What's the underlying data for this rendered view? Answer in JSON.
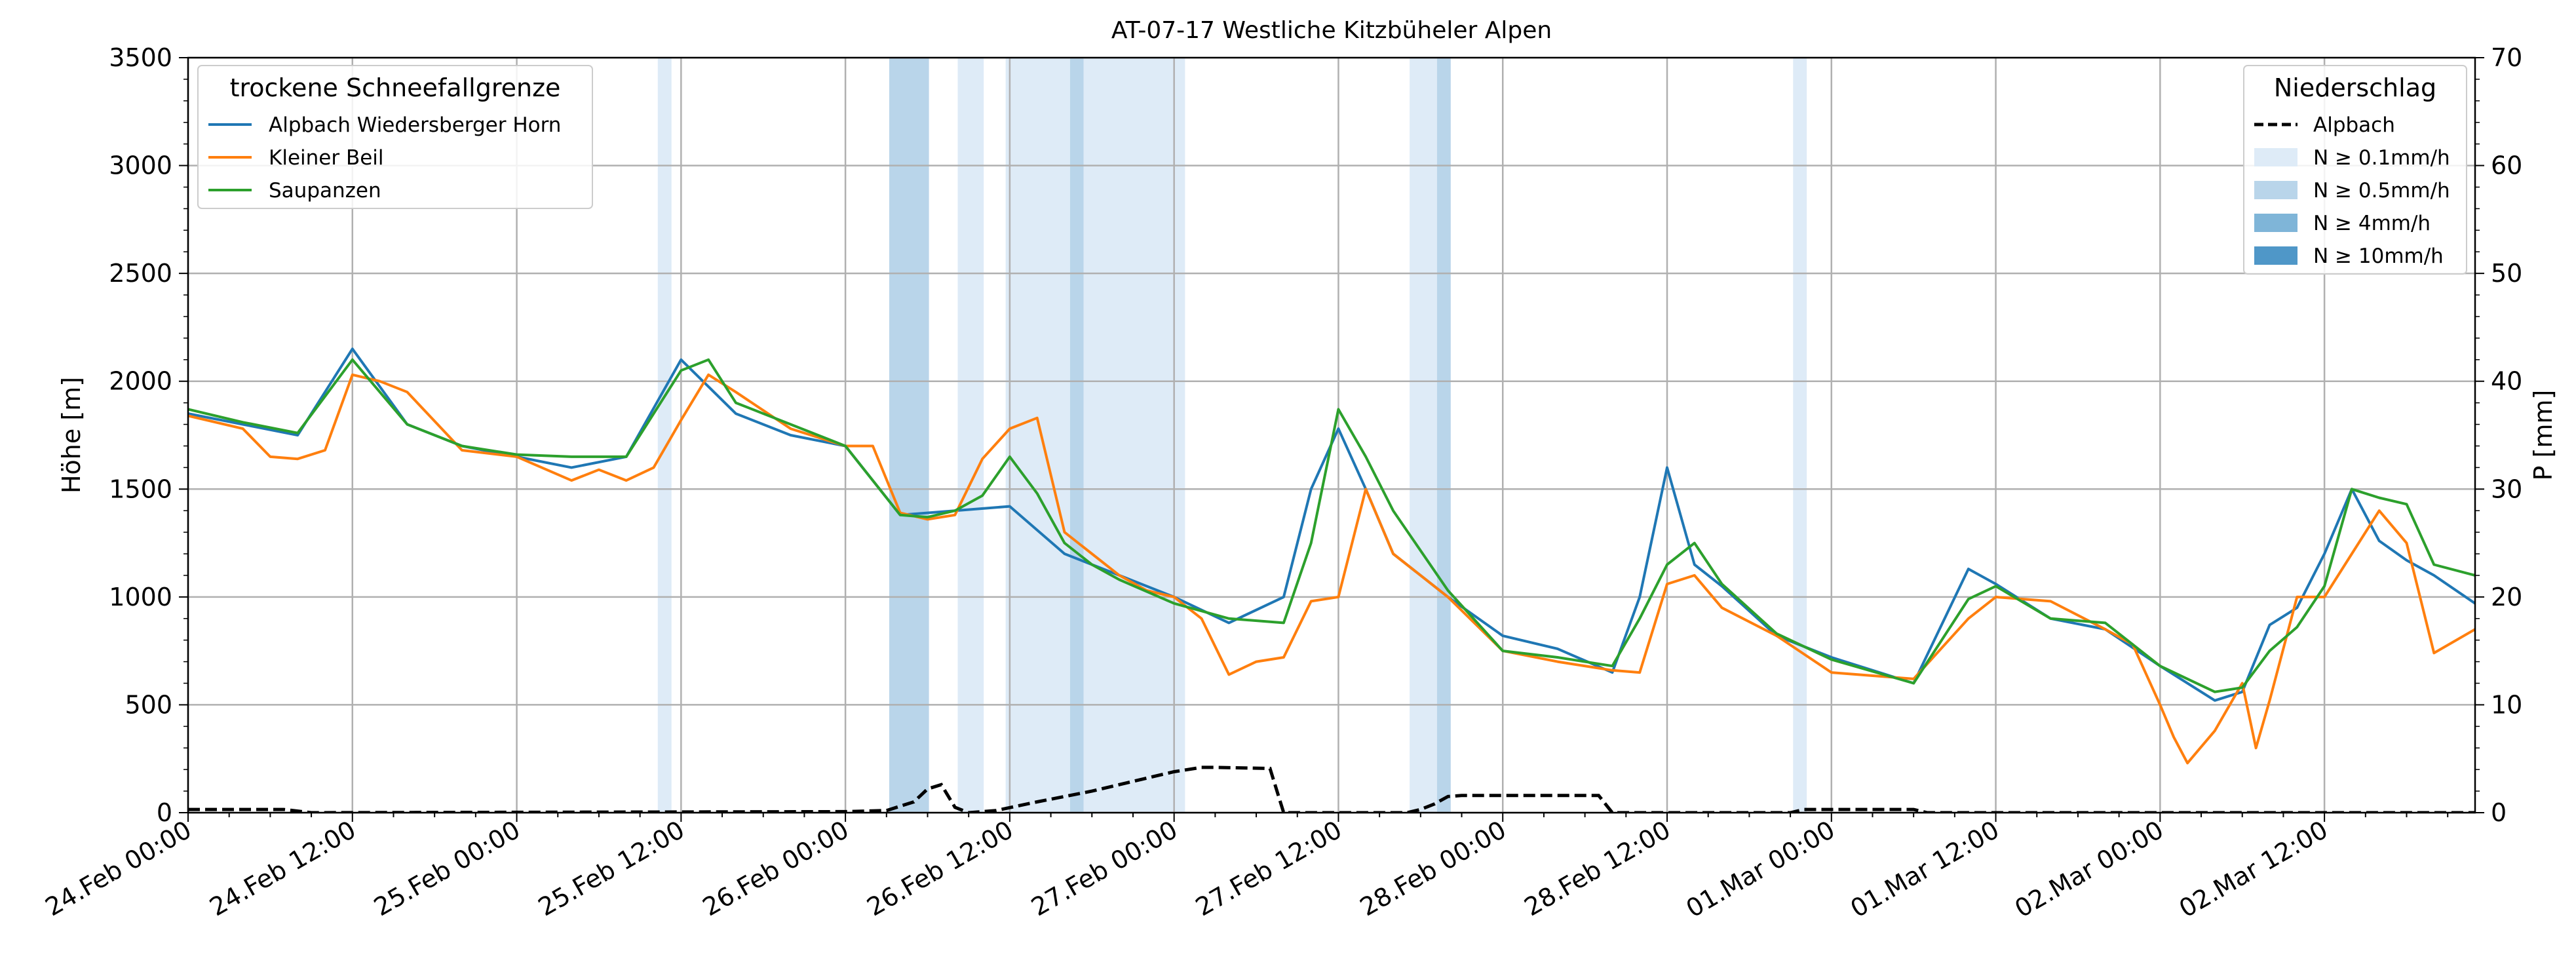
{
  "chart_data": {
    "type": "line",
    "title": "AT-07-17 Westliche Kitzbüheler Alpen",
    "ylabel": "Höhe [m]",
    "y2label": "P [mm]",
    "xlabel": "",
    "x_unit": "hours since 24.Feb 00:00",
    "xlim": [
      0,
      167
    ],
    "ylim": [
      0,
      3500
    ],
    "y2lim": [
      0,
      70
    ],
    "yticks": [
      0,
      500,
      1000,
      1500,
      2000,
      2500,
      3000,
      3500
    ],
    "y2ticks": [
      0,
      10,
      20,
      30,
      40,
      50,
      60,
      70
    ],
    "xticks": [
      {
        "t": 0,
        "label": "24.Feb 00:00"
      },
      {
        "t": 12,
        "label": "24.Feb 12:00"
      },
      {
        "t": 24,
        "label": "25.Feb 00:00"
      },
      {
        "t": 36,
        "label": "25.Feb 12:00"
      },
      {
        "t": 48,
        "label": "26.Feb 00:00"
      },
      {
        "t": 60,
        "label": "26.Feb 12:00"
      },
      {
        "t": 72,
        "label": "27.Feb 00:00"
      },
      {
        "t": 84,
        "label": "27.Feb 12:00"
      },
      {
        "t": 96,
        "label": "28.Feb 00:00"
      },
      {
        "t": 108,
        "label": "28.Feb 12:00"
      },
      {
        "t": 120,
        "label": "01.Mar 00:00"
      },
      {
        "t": 132,
        "label": "01.Mar 12:00"
      },
      {
        "t": 144,
        "label": "02.Mar 00:00"
      },
      {
        "t": 156,
        "label": "02.Mar 12:00"
      }
    ],
    "grid": true,
    "legend_left": {
      "title": "trockene Schneefallgrenze",
      "placement": "top-left"
    },
    "legend_right": {
      "title": "Niederschlag",
      "placement": "top-right",
      "entries": [
        {
          "label": "Alpbach",
          "kind": "dashed-line",
          "color": "#000000"
        },
        {
          "label": "N ≥ 0.1mm/h",
          "kind": "patch",
          "color": "#deebf7"
        },
        {
          "label": "N ≥ 0.5mm/h",
          "kind": "patch",
          "color": "#b9d5ea"
        },
        {
          "label": "N ≥ 4mm/h",
          "kind": "patch",
          "color": "#7fb5d8"
        },
        {
          "label": "N ≥ 10mm/h",
          "kind": "patch",
          "color": "#4f97c8"
        }
      ]
    },
    "precip_bands": [
      {
        "t0": 34.3,
        "t1": 35.3,
        "level": 1
      },
      {
        "t0": 51.2,
        "t1": 54.1,
        "level": 2
      },
      {
        "t0": 56.2,
        "t1": 58.1,
        "level": 1
      },
      {
        "t0": 59.7,
        "t1": 64.4,
        "level": 1
      },
      {
        "t0": 64.4,
        "t1": 65.4,
        "level": 2
      },
      {
        "t0": 65.4,
        "t1": 72.8,
        "level": 1
      },
      {
        "t0": 89.2,
        "t1": 91.2,
        "level": 1
      },
      {
        "t0": 91.2,
        "t1": 92.2,
        "level": 2
      },
      {
        "t0": 117.2,
        "t1": 118.2,
        "level": 1
      }
    ],
    "series": [
      {
        "name": "Alpbach Wiedersberger Horn",
        "color": "#1f77b4",
        "x": [
          0,
          4,
          8,
          12,
          16,
          20,
          24,
          28,
          32,
          36,
          40,
          44,
          48,
          52,
          56,
          60,
          64,
          68,
          72,
          76,
          80,
          82,
          84,
          86,
          88,
          92,
          96,
          100,
          104,
          106,
          108,
          110,
          112,
          116,
          120,
          126,
          130,
          132,
          136,
          140,
          144,
          148,
          150,
          152,
          154,
          156,
          158,
          160,
          162,
          164,
          167
        ],
        "values": [
          1850,
          1800,
          1750,
          2150,
          1800,
          1700,
          1650,
          1600,
          1650,
          2100,
          1850,
          1750,
          1700,
          1380,
          1400,
          1420,
          1200,
          1100,
          1000,
          880,
          1000,
          1500,
          1780,
          1500,
          1200,
          1000,
          820,
          760,
          650,
          1000,
          1600,
          1150,
          1050,
          820,
          720,
          600,
          1130,
          1060,
          900,
          850,
          680,
          520,
          560,
          870,
          950,
          1200,
          1500,
          1260,
          1170,
          1100,
          970
        ]
      },
      {
        "name": "Kleiner Beil",
        "color": "#ff7f0e",
        "x": [
          0,
          4,
          6,
          8,
          10,
          12,
          14,
          16,
          20,
          24,
          28,
          30,
          32,
          34,
          36,
          38,
          40,
          44,
          48,
          50,
          52,
          54,
          56,
          58,
          60,
          62,
          64,
          66,
          68,
          70,
          72,
          74,
          76,
          78,
          80,
          82,
          84,
          86,
          88,
          92,
          96,
          100,
          104,
          106,
          108,
          110,
          112,
          116,
          120,
          126,
          130,
          132,
          136,
          140,
          142,
          144,
          145,
          146,
          148,
          150,
          151,
          152,
          154,
          156,
          158,
          160,
          162,
          164,
          167
        ],
        "values": [
          1840,
          1780,
          1650,
          1640,
          1680,
          2030,
          2000,
          1950,
          1680,
          1650,
          1540,
          1590,
          1540,
          1600,
          1820,
          2030,
          1950,
          1780,
          1700,
          1700,
          1390,
          1360,
          1380,
          1640,
          1780,
          1830,
          1300,
          1200,
          1100,
          1030,
          1000,
          900,
          640,
          700,
          720,
          980,
          1000,
          1500,
          1200,
          1000,
          750,
          700,
          660,
          650,
          1060,
          1100,
          950,
          820,
          650,
          620,
          900,
          1000,
          980,
          850,
          780,
          500,
          350,
          230,
          380,
          600,
          300,
          520,
          1000,
          1000,
          1200,
          1400,
          1250,
          740,
          850
        ]
      },
      {
        "name": "Saupanzen",
        "color": "#2ca02c",
        "x": [
          0,
          4,
          8,
          12,
          16,
          20,
          24,
          28,
          32,
          36,
          38,
          40,
          44,
          48,
          52,
          54,
          56,
          58,
          60,
          62,
          64,
          66,
          68,
          72,
          76,
          80,
          82,
          84,
          86,
          88,
          92,
          96,
          100,
          104,
          106,
          108,
          110,
          112,
          116,
          120,
          126,
          130,
          132,
          136,
          140,
          144,
          148,
          150,
          152,
          154,
          156,
          158,
          160,
          162,
          164,
          167
        ],
        "values": [
          1870,
          1810,
          1760,
          2100,
          1800,
          1700,
          1660,
          1650,
          1650,
          2050,
          2100,
          1900,
          1800,
          1700,
          1380,
          1370,
          1400,
          1470,
          1650,
          1480,
          1250,
          1150,
          1080,
          970,
          900,
          880,
          1250,
          1870,
          1650,
          1400,
          1030,
          750,
          720,
          680,
          900,
          1150,
          1250,
          1060,
          830,
          710,
          600,
          990,
          1050,
          900,
          880,
          680,
          560,
          580,
          750,
          860,
          1050,
          1500,
          1460,
          1430,
          1150,
          1100
        ]
      }
    ],
    "precip_series": {
      "name": "Alpbach",
      "x": [
        0,
        7,
        9,
        48,
        51,
        53,
        54,
        55,
        56,
        57,
        59,
        62,
        64,
        66,
        68,
        70,
        72,
        74,
        75,
        79,
        80,
        89,
        90,
        91,
        92,
        93,
        94,
        100,
        103,
        104,
        117,
        118,
        119,
        126,
        127,
        167
      ],
      "values": [
        0.3,
        0.3,
        0,
        0.1,
        0.2,
        1.0,
        2.2,
        2.6,
        0.5,
        0,
        0.2,
        1.0,
        1.5,
        2.0,
        2.6,
        3.2,
        3.8,
        4.2,
        4.2,
        4.1,
        0,
        0,
        0.3,
        0.8,
        1.5,
        1.6,
        1.6,
        1.6,
        1.6,
        0,
        0,
        0.3,
        0.3,
        0.3,
        0,
        0
      ]
    }
  }
}
